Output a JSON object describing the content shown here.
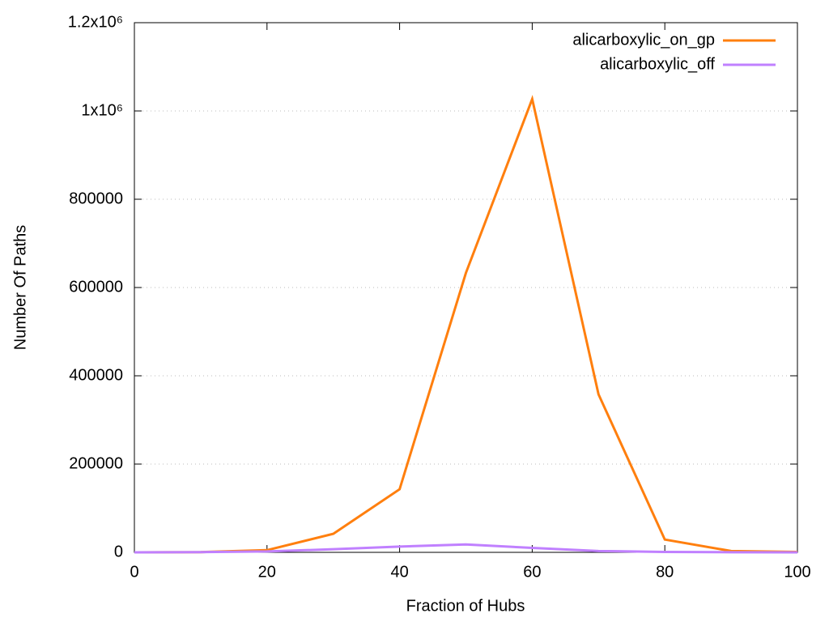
{
  "chart_data": {
    "type": "line",
    "x": [
      0,
      10,
      20,
      30,
      40,
      50,
      60,
      70,
      80,
      90,
      100
    ],
    "series": [
      {
        "name": "alicarboxylic_on_gp",
        "color": "#ff7f0e",
        "values": [
          0,
          500,
          5000,
          42000,
          143000,
          633000,
          1027000,
          358000,
          29000,
          3000,
          1000
        ]
      },
      {
        "name": "alicarboxylic_off",
        "color": "#c080ff",
        "values": [
          0,
          500,
          2000,
          7000,
          13000,
          18000,
          10000,
          3000,
          1000,
          300,
          100
        ]
      }
    ],
    "xlabel": "Fraction of Hubs",
    "ylabel": "Number Of Paths",
    "xlim": [
      0,
      100
    ],
    "xticks": [
      0,
      20,
      40,
      60,
      80,
      100
    ],
    "ylim": [
      0,
      1200000
    ],
    "yticks": [
      0,
      200000,
      400000,
      600000,
      800000,
      {
        "value": 1000000,
        "label": "1x10⁶"
      },
      {
        "value": 1200000,
        "label": "1.2x10⁶"
      }
    ],
    "grid": true,
    "legend": "top-right"
  }
}
